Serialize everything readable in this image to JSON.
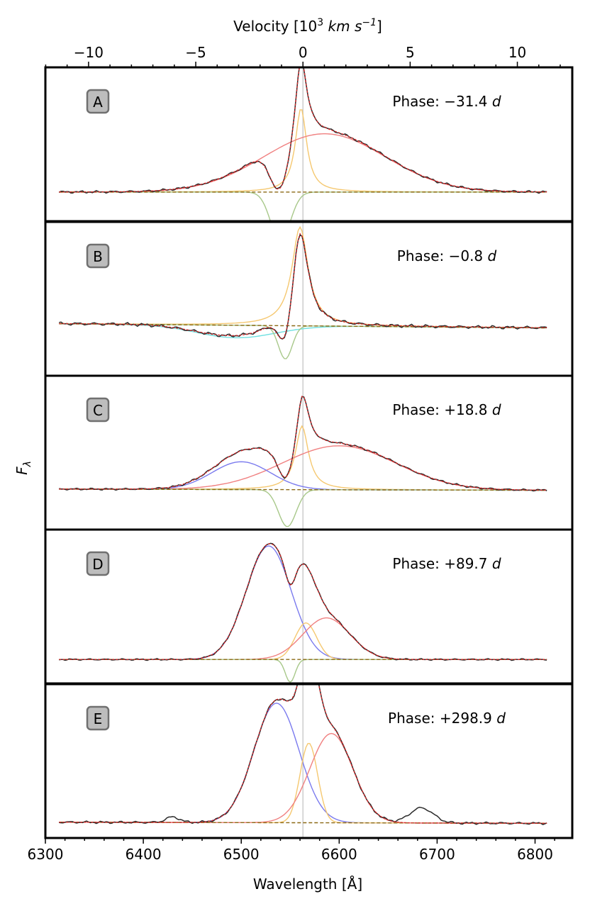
{
  "chart_data": {
    "type": "line",
    "title": "",
    "xlabel": "Wavelength [Å]",
    "ylabel": "F",
    "ylabel_subscript": "λ",
    "xlim": [
      6300,
      6838
    ],
    "x_ticks": [
      6300,
      6400,
      6500,
      6600,
      6700,
      6800
    ],
    "x_tick_labels": [
      "6300",
      "6400",
      "6500",
      "6600",
      "6700",
      "6800"
    ],
    "rest_wavelength": 6563,
    "top_axis": {
      "label_prefix": "Velocity [10",
      "label_sup1": "3",
      "label_mid": " km s",
      "label_sup2": "−1",
      "label_suffix": "]",
      "ticks": [
        -10,
        -5,
        0,
        5,
        10
      ],
      "tick_labels": [
        "−10",
        "−5",
        "0",
        "5",
        "10"
      ]
    },
    "colors": {
      "observed": "#2b2b2b",
      "total_fit": "#d62728",
      "narrow": "#f5c870",
      "broad_red": "#f08080",
      "absorption": "#a8c88a",
      "blue": "#7a7aee",
      "cyan": "#6ee0e0",
      "continuum": "#8b6914",
      "rest_line": "#cccccc"
    },
    "panels": [
      {
        "id": "A",
        "phase_label": "Phase: −31.4 d",
        "phase_prefix": "Phase: −31.4 ",
        "phase_unit": "d",
        "ylim": [
          -0.25,
          1.07
        ],
        "continuum": [
          0.0,
          0.0
        ],
        "components": [
          {
            "name": "narrow",
            "type": "lorentz",
            "center": 6561,
            "amp": 0.72,
            "width": 7
          },
          {
            "name": "broad_red",
            "type": "gauss",
            "center": 6585,
            "amp": 0.5,
            "width": 62
          },
          {
            "name": "absorption",
            "type": "gauss",
            "center": 6540,
            "amp": -0.42,
            "width": 10
          }
        ],
        "noise": 0.012,
        "slope": 0.0
      },
      {
        "id": "B",
        "phase_label": "Phase: −0.8 d",
        "phase_prefix": "Phase: −0.8 ",
        "phase_unit": "d",
        "ylim": [
          -0.45,
          1.03
        ],
        "continuum": [
          0.05,
          -0.04
        ],
        "components": [
          {
            "name": "narrow",
            "type": "lorentz",
            "center": 6560,
            "amp": 0.95,
            "width": 10
          },
          {
            "name": "cyan",
            "type": "gauss",
            "center": 6495,
            "amp": -0.12,
            "width": 40
          },
          {
            "name": "absorption",
            "type": "gauss",
            "center": 6545,
            "amp": -0.32,
            "width": 7
          }
        ],
        "noise": 0.018,
        "slope": 0.0
      },
      {
        "id": "C",
        "phase_label": "Phase: +18.8 d",
        "phase_prefix": "Phase: +18.8 ",
        "phase_unit": "d",
        "ylim": [
          -0.35,
          0.98
        ],
        "continuum": [
          0.0,
          -0.01
        ],
        "components": [
          {
            "name": "narrow",
            "type": "lorentz",
            "center": 6562,
            "amp": 0.55,
            "width": 8
          },
          {
            "name": "broad_red",
            "type": "gauss",
            "center": 6600,
            "amp": 0.38,
            "width": 58
          },
          {
            "name": "blue",
            "type": "gauss",
            "center": 6500,
            "amp": 0.24,
            "width": 30
          },
          {
            "name": "absorption",
            "type": "gauss",
            "center": 6547,
            "amp": -0.32,
            "width": 9
          }
        ],
        "noise": 0.01,
        "slope": 0.0
      },
      {
        "id": "D",
        "phase_label": "Phase: +89.7 d",
        "phase_prefix": "Phase: +89.7 ",
        "phase_unit": "d",
        "ylim": [
          -0.19,
          1.03
        ],
        "continuum": [
          0.0,
          0.0
        ],
        "components": [
          {
            "name": "blue",
            "type": "gauss",
            "center": 6528,
            "amp": 0.9,
            "width": 23
          },
          {
            "name": "narrow",
            "type": "gauss",
            "center": 6566,
            "amp": 0.29,
            "width": 11
          },
          {
            "name": "broad_red",
            "type": "gauss",
            "center": 6587,
            "amp": 0.33,
            "width": 24
          },
          {
            "name": "absorption",
            "type": "gauss",
            "center": 6550,
            "amp": -0.18,
            "width": 5
          }
        ],
        "noise": 0.008,
        "slope": 0.0
      },
      {
        "id": "E",
        "phase_label": "Phase: +298.9 d",
        "phase_prefix": "Phase: +298.9 ",
        "phase_unit": "d",
        "ylim": [
          -0.1,
          1.02
        ],
        "continuum": [
          0.015,
          -0.008
        ],
        "components": [
          {
            "name": "blue",
            "type": "gauss",
            "center": 6536,
            "amp": 0.87,
            "width": 23
          },
          {
            "name": "narrow",
            "type": "gauss",
            "center": 6569,
            "amp": 0.58,
            "width": 9
          },
          {
            "name": "broad_red",
            "type": "gauss",
            "center": 6592,
            "amp": 0.65,
            "width": 22
          }
        ],
        "extra_observed": [
          {
            "center": 6684,
            "amp": 0.11,
            "width": 12
          },
          {
            "center": 6430,
            "amp": 0.04,
            "width": 7
          }
        ],
        "noise": 0.01,
        "slope": 0.0
      }
    ]
  }
}
